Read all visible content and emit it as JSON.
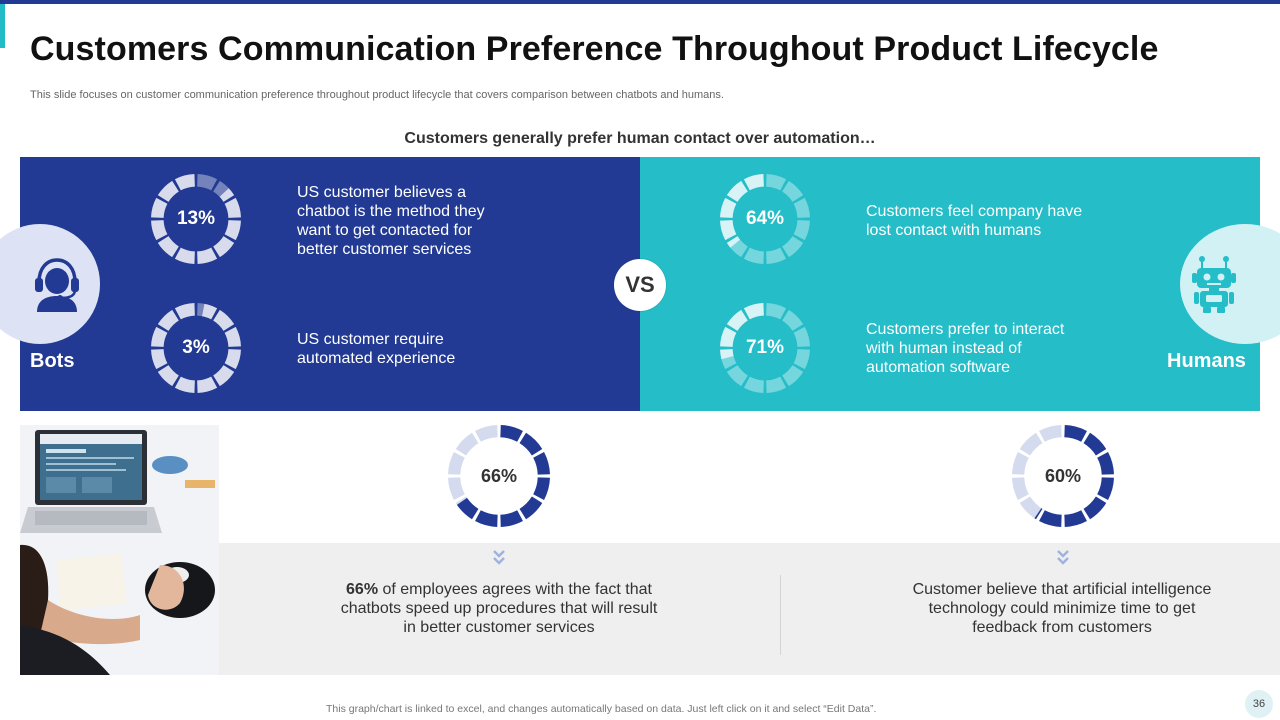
{
  "slide": {
    "title": "Customers Communication Preference Throughout Product Lifecycle",
    "subtitle": "This slide focuses on customer communication preference throughout product lifecycle that covers comparison between chatbots and humans.",
    "headline": "Customers generally prefer human contact over automation…",
    "vs_label": "VS",
    "footnote": "This graph/chart is linked to excel, and changes automatically based on data. Just left click on it and select “Edit Data”.",
    "page_number": "36"
  },
  "colors": {
    "navy": "#223a93",
    "teal": "#24bdc8",
    "light_gray": "#efefef"
  },
  "bots": {
    "label": "Bots",
    "icon": "headset-agent-icon",
    "stats": [
      {
        "percent_label": "13%",
        "value": 13,
        "text": "US customer believes a chatbot is the method they want to get contacted for better customer services"
      },
      {
        "percent_label": "3%",
        "value": 3,
        "text": "US customer require automated experience"
      }
    ]
  },
  "humans": {
    "label": "Humans",
    "icon": "robot-icon",
    "stats": [
      {
        "percent_label": "64%",
        "value": 64,
        "text": "Customers feel company have lost contact with humans"
      },
      {
        "percent_label": "71%",
        "value": 71,
        "text": "Customers prefer to interact with human instead of automation software"
      }
    ]
  },
  "bottom": {
    "photo": "laptop-desk-photo",
    "stats": [
      {
        "percent_label": "66%",
        "value": 66,
        "bold_text": "66%",
        "text": " of employees agrees with the fact that chatbots speed up procedures that will result in better customer services"
      },
      {
        "percent_label": "60%",
        "value": 60,
        "text": "Customer believe that artificial intelligence technology could minimize time to get feedback from customers"
      }
    ]
  }
}
